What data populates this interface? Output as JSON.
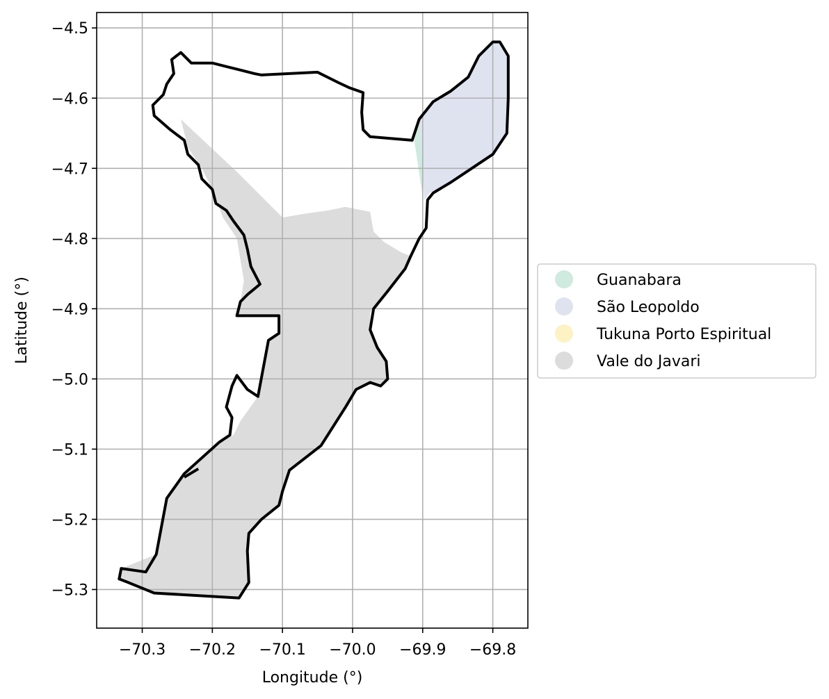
{
  "chart_data": {
    "type": "map",
    "xlabel": "Longitude (°)",
    "ylabel": "Latitude (°)",
    "xlim": [
      -70.365,
      -69.75
    ],
    "ylim": [
      -5.355,
      -4.478
    ],
    "x_ticks": [
      {
        "value": -70.3,
        "label": "−70.3"
      },
      {
        "value": -70.2,
        "label": "−70.2"
      },
      {
        "value": -70.1,
        "label": "−70.1"
      },
      {
        "value": -70.0,
        "label": "−70.0"
      },
      {
        "value": -69.9,
        "label": "−69.9"
      },
      {
        "value": -69.8,
        "label": "−69.8"
      }
    ],
    "y_ticks": [
      {
        "value": -4.5,
        "label": "−4.5"
      },
      {
        "value": -4.6,
        "label": "−4.6"
      },
      {
        "value": -4.7,
        "label": "−4.7"
      },
      {
        "value": -4.8,
        "label": "−4.8"
      },
      {
        "value": -4.9,
        "label": "−4.9"
      },
      {
        "value": -5.0,
        "label": "−5.0"
      },
      {
        "value": -5.1,
        "label": "−5.1"
      },
      {
        "value": -5.2,
        "label": "−5.2"
      },
      {
        "value": -5.3,
        "label": "−5.3"
      }
    ],
    "grid": true,
    "legend_position": "right-center",
    "legend": [
      {
        "label": "Guanabara",
        "color": "#cfeade"
      },
      {
        "label": "São Leopoldo",
        "color": "#dfe3f0"
      },
      {
        "label": "Tukuna Porto Espiritual",
        "color": "#fdf2c4"
      },
      {
        "label": "Vale do Javari",
        "color": "#dcdcdc"
      }
    ],
    "regions": [
      {
        "name": "Vale do Javari",
        "color": "#dcdcdc",
        "coords": [
          [
            -70.245,
            -4.63
          ],
          [
            -70.165,
            -4.705
          ],
          [
            -70.1,
            -4.77
          ],
          [
            -70.07,
            -4.765
          ],
          [
            -70.035,
            -4.76
          ],
          [
            -70.01,
            -4.755
          ],
          [
            -69.975,
            -4.762
          ],
          [
            -69.97,
            -4.79
          ],
          [
            -69.955,
            -4.805
          ],
          [
            -69.93,
            -4.82
          ],
          [
            -69.917,
            -4.825
          ],
          [
            -69.925,
            -4.843
          ],
          [
            -69.95,
            -4.875
          ],
          [
            -69.975,
            -4.905
          ],
          [
            -69.975,
            -4.93
          ],
          [
            -69.965,
            -4.955
          ],
          [
            -69.952,
            -4.975
          ],
          [
            -69.95,
            -5.0
          ],
          [
            -69.96,
            -5.01
          ],
          [
            -69.975,
            -5.005
          ],
          [
            -69.995,
            -5.015
          ],
          [
            -70.01,
            -5.04
          ],
          [
            -70.045,
            -5.095
          ],
          [
            -70.09,
            -5.13
          ],
          [
            -70.1,
            -5.16
          ],
          [
            -70.105,
            -5.18
          ],
          [
            -70.13,
            -5.2
          ],
          [
            -70.148,
            -5.22
          ],
          [
            -70.15,
            -5.245
          ],
          [
            -70.148,
            -5.29
          ],
          [
            -70.162,
            -5.312
          ],
          [
            -70.283,
            -5.305
          ],
          [
            -70.335,
            -5.285
          ],
          [
            -70.33,
            -5.27
          ],
          [
            -70.28,
            -5.25
          ],
          [
            -70.265,
            -5.17
          ],
          [
            -70.24,
            -5.135
          ],
          [
            -70.19,
            -5.09
          ],
          [
            -70.17,
            -5.08
          ],
          [
            -70.16,
            -5.06
          ],
          [
            -70.135,
            -5.025
          ],
          [
            -70.12,
            -4.945
          ],
          [
            -70.105,
            -4.935
          ],
          [
            -70.105,
            -4.91
          ],
          [
            -70.165,
            -4.91
          ],
          [
            -70.16,
            -4.89
          ],
          [
            -70.155,
            -4.86
          ],
          [
            -70.165,
            -4.8
          ],
          [
            -70.185,
            -4.77
          ],
          [
            -70.2,
            -4.73
          ],
          [
            -70.215,
            -4.7
          ],
          [
            -70.235,
            -4.67
          ]
        ]
      },
      {
        "name": "Guanabara",
        "color": "#cfeade",
        "coords": [
          [
            -69.912,
            -4.66
          ],
          [
            -69.905,
            -4.63
          ],
          [
            -69.898,
            -4.7
          ],
          [
            -69.9,
            -4.74
          ]
        ]
      },
      {
        "name": "São Leopoldo",
        "color": "#dfe3f0",
        "coords": [
          [
            -69.905,
            -4.63
          ],
          [
            -69.885,
            -4.605
          ],
          [
            -69.86,
            -4.59
          ],
          [
            -69.835,
            -4.57
          ],
          [
            -69.82,
            -4.54
          ],
          [
            -69.8,
            -4.52
          ],
          [
            -69.79,
            -4.52
          ],
          [
            -69.778,
            -4.54
          ],
          [
            -69.778,
            -4.6
          ],
          [
            -69.78,
            -4.65
          ],
          [
            -69.8,
            -4.68
          ],
          [
            -69.83,
            -4.7
          ],
          [
            -69.86,
            -4.72
          ],
          [
            -69.89,
            -4.735
          ],
          [
            -69.898,
            -4.745
          ],
          [
            -69.9,
            -4.7
          ]
        ]
      }
    ],
    "boundary": [
      [
        -70.245,
        -4.535
      ],
      [
        -70.23,
        -4.55
      ],
      [
        -70.2,
        -4.55
      ],
      [
        -70.18,
        -4.555
      ],
      [
        -70.16,
        -4.56
      ],
      [
        -70.14,
        -4.565
      ],
      [
        -70.13,
        -4.567
      ],
      [
        -70.05,
        -4.563
      ],
      [
        -70.02,
        -4.578
      ],
      [
        -70.005,
        -4.585
      ],
      [
        -69.985,
        -4.592
      ],
      [
        -69.987,
        -4.62
      ],
      [
        -69.985,
        -4.645
      ],
      [
        -69.975,
        -4.655
      ],
      [
        -69.915,
        -4.66
      ],
      [
        -69.905,
        -4.63
      ],
      [
        -69.885,
        -4.605
      ],
      [
        -69.86,
        -4.59
      ],
      [
        -69.835,
        -4.57
      ],
      [
        -69.82,
        -4.54
      ],
      [
        -69.8,
        -4.52
      ],
      [
        -69.79,
        -4.52
      ],
      [
        -69.778,
        -4.54
      ],
      [
        -69.778,
        -4.6
      ],
      [
        -69.78,
        -4.65
      ],
      [
        -69.8,
        -4.68
      ],
      [
        -69.83,
        -4.7
      ],
      [
        -69.86,
        -4.72
      ],
      [
        -69.885,
        -4.735
      ],
      [
        -69.893,
        -4.745
      ],
      [
        -69.895,
        -4.785
      ],
      [
        -69.905,
        -4.8
      ],
      [
        -69.917,
        -4.825
      ],
      [
        -69.925,
        -4.843
      ],
      [
        -69.95,
        -4.875
      ],
      [
        -69.97,
        -4.9
      ],
      [
        -69.975,
        -4.93
      ],
      [
        -69.965,
        -4.955
      ],
      [
        -69.952,
        -4.975
      ],
      [
        -69.95,
        -5.0
      ],
      [
        -69.96,
        -5.01
      ],
      [
        -69.975,
        -5.005
      ],
      [
        -69.995,
        -5.015
      ],
      [
        -70.01,
        -5.04
      ],
      [
        -70.045,
        -5.095
      ],
      [
        -70.09,
        -5.13
      ],
      [
        -70.1,
        -5.16
      ],
      [
        -70.105,
        -5.18
      ],
      [
        -70.13,
        -5.2
      ],
      [
        -70.148,
        -5.22
      ],
      [
        -70.15,
        -5.245
      ],
      [
        -70.148,
        -5.29
      ],
      [
        -70.162,
        -5.312
      ],
      [
        -70.283,
        -5.305
      ],
      [
        -70.32,
        -5.29
      ],
      [
        -70.333,
        -5.285
      ],
      [
        -70.33,
        -5.27
      ],
      [
        -70.295,
        -5.275
      ],
      [
        -70.28,
        -5.25
      ],
      [
        -70.265,
        -5.17
      ],
      [
        -70.24,
        -5.135
      ],
      [
        -70.19,
        -5.09
      ],
      [
        -70.175,
        -5.08
      ],
      [
        -70.172,
        -5.055
      ],
      [
        -70.18,
        -5.04
      ],
      [
        -70.172,
        -5.01
      ],
      [
        -70.165,
        -4.995
      ],
      [
        -70.15,
        -5.015
      ],
      [
        -70.135,
        -5.025
      ],
      [
        -70.12,
        -4.945
      ],
      [
        -70.105,
        -4.935
      ],
      [
        -70.105,
        -4.91
      ],
      [
        -70.165,
        -4.91
      ],
      [
        -70.16,
        -4.89
      ],
      [
        -70.15,
        -4.88
      ],
      [
        -70.132,
        -4.865
      ],
      [
        -70.145,
        -4.84
      ],
      [
        -70.15,
        -4.815
      ],
      [
        -70.155,
        -4.795
      ],
      [
        -70.17,
        -4.775
      ],
      [
        -70.18,
        -4.76
      ],
      [
        -70.195,
        -4.75
      ],
      [
        -70.2,
        -4.73
      ],
      [
        -70.215,
        -4.715
      ],
      [
        -70.22,
        -4.695
      ],
      [
        -70.235,
        -4.68
      ],
      [
        -70.24,
        -4.66
      ],
      [
        -70.26,
        -4.645
      ],
      [
        -70.283,
        -4.625
      ],
      [
        -70.285,
        -4.61
      ],
      [
        -70.27,
        -4.595
      ],
      [
        -70.265,
        -4.58
      ],
      [
        -70.255,
        -4.565
      ],
      [
        -70.258,
        -4.545
      ]
    ],
    "boundary_fragments": [
      [
        [
          -70.24,
          -5.14
        ],
        [
          -70.22,
          -5.128
        ]
      ]
    ]
  }
}
